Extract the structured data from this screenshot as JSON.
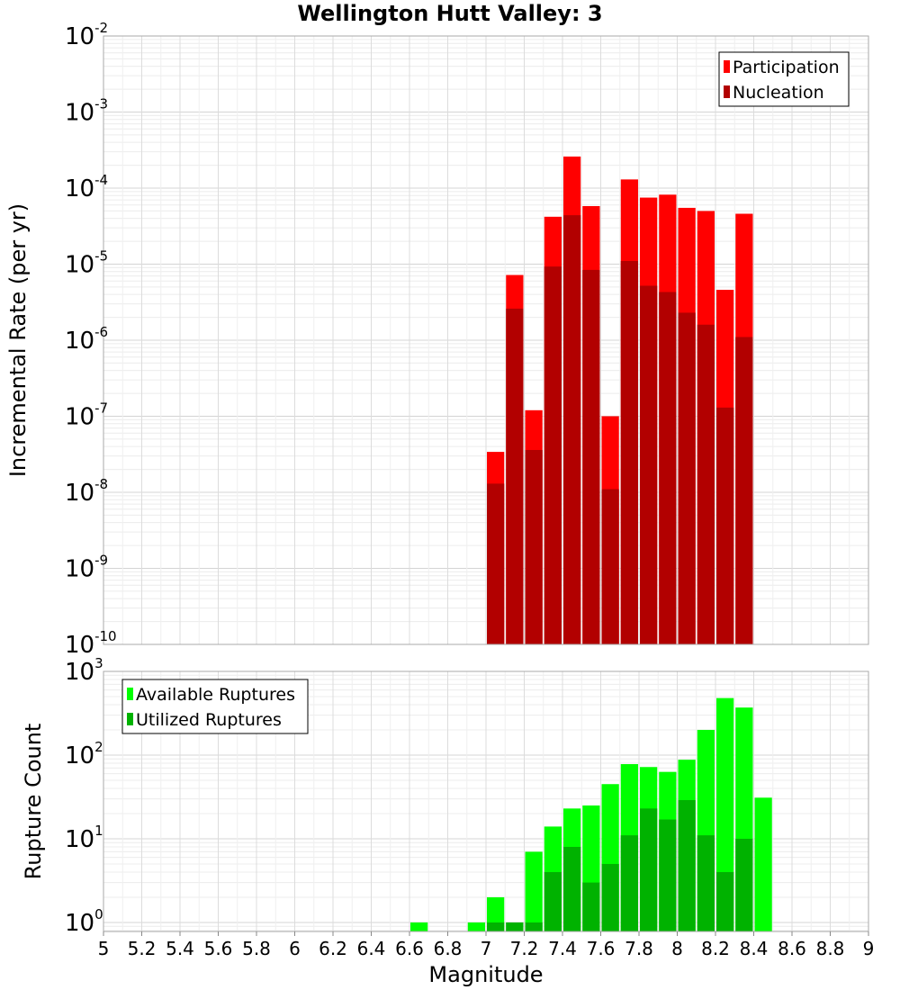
{
  "chart_data": {
    "title": "Wellington Hutt Valley: 3",
    "xlabel": "Magnitude",
    "xlim": [
      5,
      9
    ],
    "xticks": [
      "5",
      "5.2",
      "5.4",
      "5.6",
      "5.8",
      "6",
      "6.2",
      "6.4",
      "6.6",
      "6.8",
      "7",
      "7.2",
      "7.4",
      "7.6",
      "7.8",
      "8",
      "8.2",
      "8.4",
      "8.6",
      "8.8",
      "9"
    ],
    "bin_width": 0.1,
    "charts": [
      {
        "type": "bar",
        "scale": "log",
        "ylabel": "Incremental Rate (per yr)",
        "ylim": [
          1e-10,
          0.01
        ],
        "yticks": [
          {
            "base": "10",
            "exp": "-10"
          },
          {
            "base": "10",
            "exp": "-9"
          },
          {
            "base": "10",
            "exp": "-8"
          },
          {
            "base": "10",
            "exp": "-7"
          },
          {
            "base": "10",
            "exp": "-6"
          },
          {
            "base": "10",
            "exp": "-5"
          },
          {
            "base": "10",
            "exp": "-4"
          },
          {
            "base": "10",
            "exp": "-3"
          },
          {
            "base": "10",
            "exp": "-2"
          }
        ],
        "legend_position": "top-right",
        "x": [
          7.05,
          7.15,
          7.25,
          7.35,
          7.45,
          7.55,
          7.65,
          7.75,
          7.85,
          7.95,
          8.05,
          8.15,
          8.25,
          8.35
        ],
        "series": [
          {
            "name": "Participation",
            "color": "#ff0000",
            "values": [
              3.4e-08,
              7.2e-06,
              1.2e-07,
              4.2e-05,
              0.00026,
              5.8e-05,
              1e-07,
              0.00013,
              7.5e-05,
              8.2e-05,
              5.5e-05,
              5e-05,
              4.6e-06,
              4.6e-05
            ]
          },
          {
            "name": "Nucleation",
            "color": "#b20000",
            "values": [
              1.3e-08,
              2.6e-06,
              3.6e-08,
              9.3e-06,
              4.4e-05,
              8.4e-06,
              1.1e-08,
              1.1e-05,
              5.2e-06,
              4.3e-06,
              2.3e-06,
              1.6e-06,
              1.3e-07,
              1.1e-06
            ]
          }
        ]
      },
      {
        "type": "bar",
        "scale": "log",
        "ylabel": "Rupture Count",
        "ylim": [
          0.78,
          1000
        ],
        "yticks": [
          {
            "base": "10",
            "exp": "0"
          },
          {
            "base": "10",
            "exp": "1"
          },
          {
            "base": "10",
            "exp": "2"
          },
          {
            "base": "10",
            "exp": "3"
          }
        ],
        "legend_position": "top-left",
        "x": [
          6.65,
          6.95,
          7.05,
          7.15,
          7.25,
          7.35,
          7.45,
          7.55,
          7.65,
          7.75,
          7.85,
          7.95,
          8.05,
          8.15,
          8.25,
          8.35,
          8.45
        ],
        "series": [
          {
            "name": "Available Ruptures",
            "color": "#00ff00",
            "values": [
              1,
              1,
              2,
              1,
              7,
              14,
              23,
              25,
              45,
              78,
              72,
              63,
              88,
              200,
              480,
              370,
              31
            ]
          },
          {
            "name": "Utilized Ruptures",
            "color": "#00b200",
            "values": [
              0,
              0,
              1,
              1,
              1,
              4,
              8,
              3,
              5,
              11,
              23,
              17,
              29,
              11,
              4,
              10,
              0
            ]
          }
        ]
      }
    ]
  }
}
